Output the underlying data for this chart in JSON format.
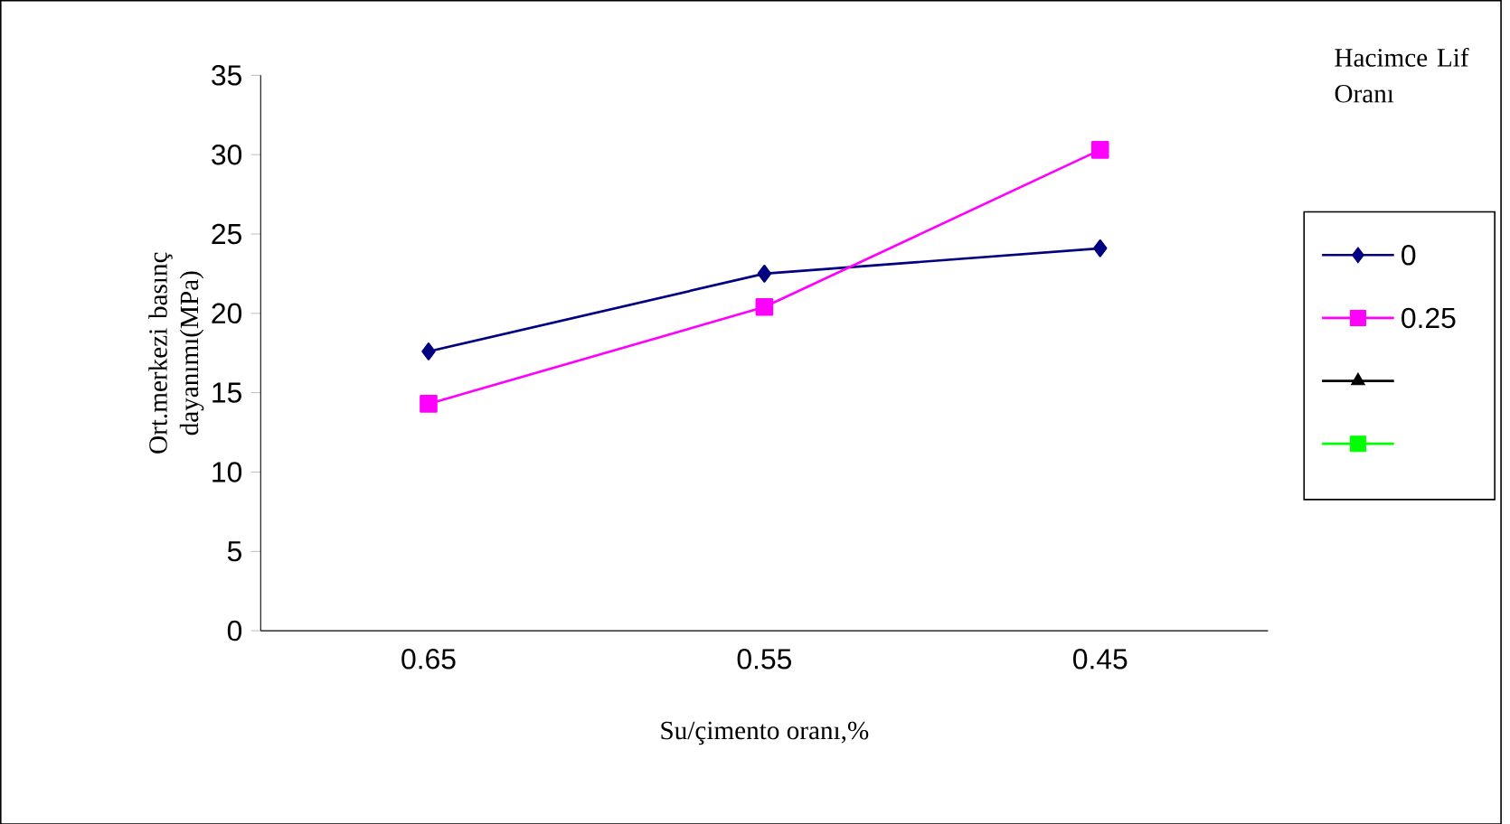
{
  "chart_data": {
    "type": "line",
    "categories": [
      "0.65",
      "0.55",
      "0.45"
    ],
    "xlabel": "Su/çimento oranı,%",
    "ylabel": "Ort.merkezi basınç dayanımı(MPa)",
    "legend_title": "Hacimce Lif Oranı",
    "series": [
      {
        "name": "0",
        "color": "#000080",
        "marker": "diamond",
        "values": [
          17.6,
          22.5,
          24.1
        ]
      },
      {
        "name": "0.25",
        "color": "#ff00ff",
        "marker": "square",
        "values": [
          14.3,
          20.4,
          30.3
        ]
      },
      {
        "color": "#000000",
        "marker": "triangle",
        "values": [
          null,
          null,
          null
        ]
      },
      {
        "color": "#00ff00",
        "marker": "square",
        "values": [
          null,
          null,
          null
        ]
      }
    ],
    "ylim": [
      0,
      35
    ],
    "yticks": [
      0,
      5,
      10,
      15,
      20,
      25,
      30,
      35
    ],
    "legend": "right",
    "grid": false
  }
}
